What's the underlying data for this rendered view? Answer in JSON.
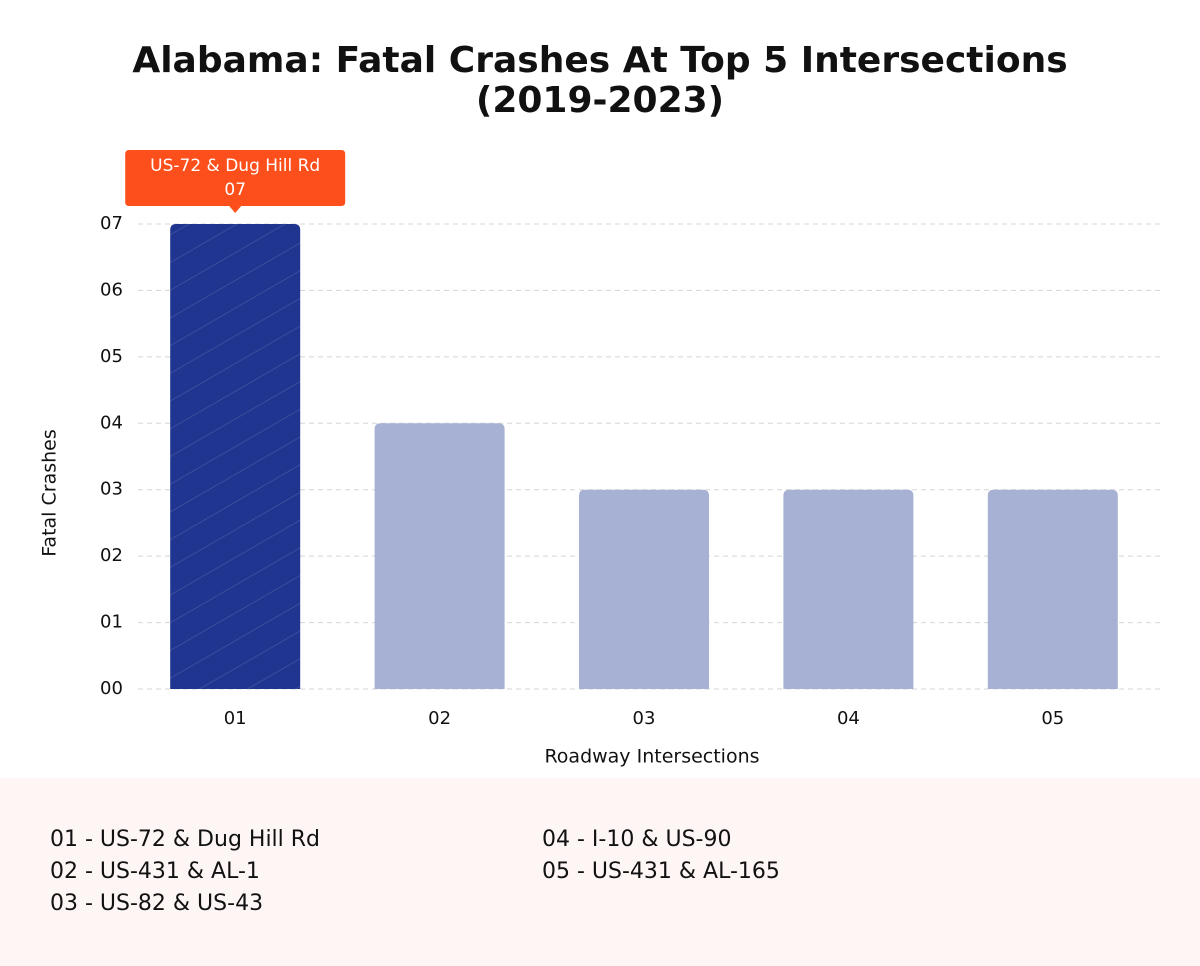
{
  "chart_data": {
    "type": "bar",
    "title": "Alabama: Fatal Crashes At Top 5 Intersections",
    "subtitle": "(2019-2023)",
    "x_label": "Roadway Intersections",
    "y_label": "Fatal Crashes",
    "categories": [
      "01",
      "02",
      "03",
      "04",
      "05"
    ],
    "values": [
      7,
      4,
      3,
      3,
      3
    ],
    "value_labels": [
      "07",
      null,
      null,
      null,
      null
    ],
    "tooltip": "US-72 & Dug Hill Rd",
    "colors": [
      "#1f358f",
      "#a7b1d3",
      "#a7b1d3",
      "#a7b1d3",
      "#a7b1d3"
    ],
    "tooltip_color": "#fd4f1b",
    "ylim": [
      0,
      7
    ],
    "yticks": [
      {
        "value": 0,
        "label": "00"
      },
      {
        "value": 1,
        "label": "01"
      },
      {
        "value": 2,
        "label": "02"
      },
      {
        "value": 3,
        "label": "03"
      },
      {
        "value": 4,
        "label": "04"
      },
      {
        "value": 5,
        "label": "05"
      },
      {
        "value": 6,
        "label": "06"
      },
      {
        "value": 7,
        "label": "07"
      }
    ],
    "grid": true,
    "legend_items": [
      "01 - US-72 & Dug Hill Rd",
      "02 - US-431 & AL-1",
      "03 - US-82 & US-43",
      "04 - I-10 & US-90",
      "05 - US-431 & AL-165"
    ]
  }
}
